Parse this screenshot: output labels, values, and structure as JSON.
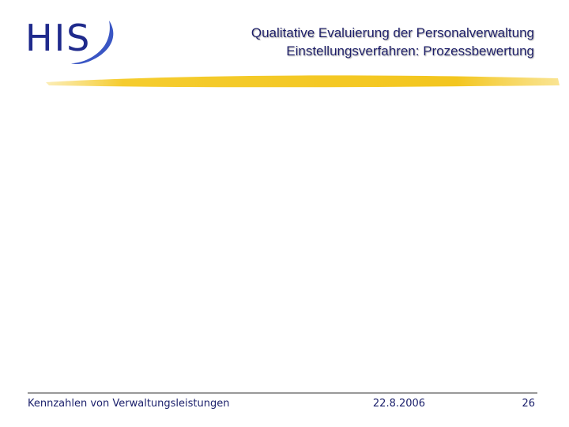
{
  "logo": {
    "text": "HIS"
  },
  "header": {
    "title_line1": "Qualitative Evaluierung der Personalverwaltung",
    "title_line2": "Einstellungsverfahren: Prozessbewertung"
  },
  "footer": {
    "left": "Kennzahlen von Verwaltungsleistungen",
    "date": "22.8.2006",
    "page": "26"
  }
}
